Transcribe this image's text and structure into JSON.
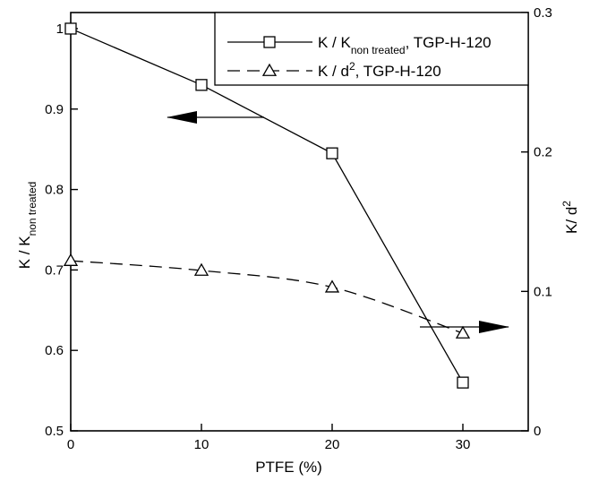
{
  "chart_data": {
    "type": "line",
    "x": [
      0,
      10,
      20,
      30
    ],
    "xlim": [
      0,
      35
    ],
    "xticks": [
      0,
      10,
      20,
      30
    ],
    "xlabel": "PTFE (%)",
    "ylabel_left": {
      "main": "K / K",
      "sub": "non treated"
    },
    "ylabel_right": {
      "main": "K/ d",
      "sup": "2"
    },
    "ylim_left": [
      0.5,
      1.02
    ],
    "yticks_left": [
      0.5,
      0.6,
      0.7,
      0.8,
      0.9,
      1.0
    ],
    "ytick_labels_left": [
      "0.5",
      "0.6",
      "0.7",
      "0.8",
      "0.9",
      "1"
    ],
    "ylim_right": [
      0,
      0.3
    ],
    "yticks_right": [
      0,
      0.1,
      0.2,
      0.3
    ],
    "ytick_labels_right": [
      "0",
      "0.1",
      "0.2",
      "0.3"
    ],
    "grid": false,
    "legend_position": "top-right",
    "series": [
      {
        "legend": {
          "main": "K / K",
          "sub": "non treated",
          "rest": ", TGP-H-120"
        },
        "axis": "left",
        "marker": "square",
        "line_style": "solid",
        "values": [
          1.0,
          0.93,
          0.845,
          0.56
        ]
      },
      {
        "legend": {
          "main": "K / d",
          "sup": "2",
          "rest": ", TGP-H-120"
        },
        "axis": "right",
        "marker": "triangle",
        "line_style": "dashed",
        "values": [
          0.122,
          0.115,
          0.103,
          0.07
        ]
      }
    ],
    "annotations": [
      {
        "type": "arrow",
        "points_to": "left-axis",
        "series": 0
      },
      {
        "type": "arrow",
        "points_to": "right-axis",
        "series": 1
      }
    ]
  }
}
